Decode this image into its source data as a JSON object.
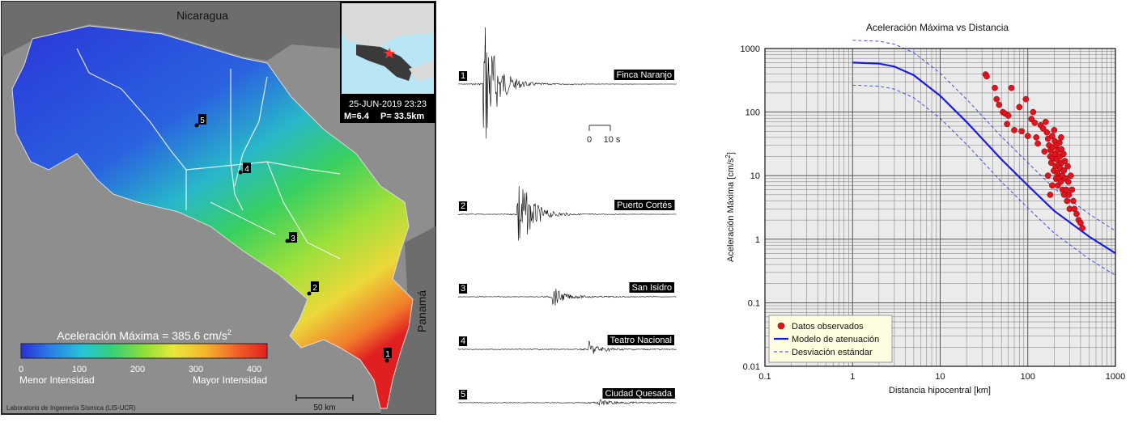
{
  "map": {
    "country_label_north": "Nicaragua",
    "country_label_east": "Panamá",
    "inset_date": "25-JUN-2019 23:23",
    "inset_magnitude": "M=6.4",
    "inset_depth": "P= 33.5km",
    "colorbar_title_prefix": "Aceleración Máxima =  385.6 cm/s",
    "colorbar_title_exp": "2",
    "colorbar_ticks": [
      "0",
      "100",
      "200",
      "300",
      "400"
    ],
    "colorbar_min_label": "Menor Intensidad",
    "colorbar_max_label": "Mayor Intensidad",
    "colorbar_colors": [
      "#2a2fd8",
      "#2a7fe8",
      "#27c6d8",
      "#36d07a",
      "#8ee03a",
      "#e8e83a",
      "#f5b52e",
      "#f0602a",
      "#e02020"
    ],
    "scale_label": "50 km",
    "credit": "Laboratorio de Ingeniería Sísmica (LIS-UCR)",
    "station_markers": [
      "1",
      "2",
      "3",
      "4",
      "5"
    ]
  },
  "seismograms": {
    "scale_labels": [
      "0",
      "10 s"
    ],
    "traces": [
      {
        "number": "1",
        "name": "Finca Naranjo"
      },
      {
        "number": "2",
        "name": "Puerto Cortés"
      },
      {
        "number": "3",
        "name": "San Isidro"
      },
      {
        "number": "4",
        "name": "Teatro Nacional"
      },
      {
        "number": "5",
        "name": "Ciudad Quesada"
      }
    ]
  },
  "chart_data": {
    "type": "scatter",
    "title": "Aceleración Máxima vs Distancia",
    "xlabel": "Distancia hipocentral [km]",
    "ylabel_prefix": "Aceleración Máxima [cm/s",
    "ylabel_exp": "2",
    "ylabel_suffix": "]",
    "x_scale": "log",
    "y_scale": "log",
    "xlim": [
      0.1,
      1000
    ],
    "ylim": [
      0.01,
      1000
    ],
    "x_ticks": [
      "0.1",
      "1",
      "10",
      "100",
      "1000"
    ],
    "y_ticks": [
      "0.01",
      "0.1",
      "1",
      "10",
      "100",
      "1000"
    ],
    "grid": true,
    "legend_position": "bottom-left",
    "legend": [
      "Datos observados",
      "Modelo de atenuación",
      "Desviación estándar"
    ],
    "colors": {
      "observed": "#e0141e",
      "model": "#1a1ae6",
      "deviation": "#3a3af0",
      "background": "#ebebeb"
    },
    "series": [
      {
        "name": "Datos observados",
        "points": [
          [
            33,
            390
          ],
          [
            34,
            365
          ],
          [
            42,
            240
          ],
          [
            44,
            160
          ],
          [
            47,
            130
          ],
          [
            52,
            100
          ],
          [
            55,
            95
          ],
          [
            58,
            65
          ],
          [
            60,
            88
          ],
          [
            65,
            240
          ],
          [
            70,
            52
          ],
          [
            80,
            120
          ],
          [
            85,
            50
          ],
          [
            95,
            160
          ],
          [
            100,
            42
          ],
          [
            110,
            78
          ],
          [
            115,
            100
          ],
          [
            120,
            68
          ],
          [
            125,
            40
          ],
          [
            130,
            32
          ],
          [
            140,
            62
          ],
          [
            150,
            55
          ],
          [
            155,
            24
          ],
          [
            160,
            70
          ],
          [
            165,
            48
          ],
          [
            170,
            38
          ],
          [
            175,
            30
          ],
          [
            180,
            20
          ],
          [
            182,
            25
          ],
          [
            185,
            16
          ],
          [
            190,
            42
          ],
          [
            192,
            28
          ],
          [
            195,
            19
          ],
          [
            198,
            12
          ],
          [
            200,
            52
          ],
          [
            203,
            35
          ],
          [
            205,
            22
          ],
          [
            208,
            14
          ],
          [
            210,
            9
          ],
          [
            212,
            30
          ],
          [
            215,
            18
          ],
          [
            218,
            11
          ],
          [
            220,
            7
          ],
          [
            222,
            25
          ],
          [
            225,
            15
          ],
          [
            228,
            9
          ],
          [
            230,
            33
          ],
          [
            232,
            20
          ],
          [
            235,
            13
          ],
          [
            238,
            8
          ],
          [
            240,
            40
          ],
          [
            242,
            26
          ],
          [
            245,
            16
          ],
          [
            248,
            10
          ],
          [
            250,
            6
          ],
          [
            255,
            22
          ],
          [
            258,
            12
          ],
          [
            260,
            5
          ],
          [
            265,
            17
          ],
          [
            270,
            9
          ],
          [
            275,
            6
          ],
          [
            280,
            4
          ],
          [
            285,
            14
          ],
          [
            290,
            8
          ],
          [
            295,
            5
          ],
          [
            300,
            3
          ],
          [
            310,
            10
          ],
          [
            320,
            6
          ],
          [
            330,
            4
          ],
          [
            340,
            3
          ],
          [
            360,
            2.5
          ],
          [
            380,
            2
          ],
          [
            400,
            1.8
          ],
          [
            420,
            1.5
          ],
          [
            180,
            5
          ],
          [
            190,
            7
          ],
          [
            170,
            10
          ]
        ]
      },
      {
        "name": "Modelo de atenuación",
        "points": [
          [
            1,
            600
          ],
          [
            2,
            580
          ],
          [
            3,
            520
          ],
          [
            5,
            380
          ],
          [
            10,
            180
          ],
          [
            20,
            70
          ],
          [
            50,
            18
          ],
          [
            100,
            7
          ],
          [
            200,
            2.8
          ],
          [
            500,
            1.1
          ],
          [
            1000,
            0.6
          ]
        ]
      },
      {
        "name": "Desviación estándar",
        "points": [
          [
            1,
            1350
          ],
          [
            2,
            1300
          ],
          [
            3,
            1170
          ],
          [
            5,
            860
          ],
          [
            10,
            410
          ],
          [
            20,
            160
          ],
          [
            50,
            41
          ],
          [
            100,
            16
          ],
          [
            200,
            6.3
          ],
          [
            500,
            2.5
          ],
          [
            1000,
            1.35
          ]
        ]
      },
      {
        "name": "Desviación estándar",
        "points": [
          [
            1,
            265
          ],
          [
            2,
            255
          ],
          [
            3,
            230
          ],
          [
            5,
            168
          ],
          [
            10,
            80
          ],
          [
            20,
            31
          ],
          [
            50,
            8
          ],
          [
            100,
            3.1
          ],
          [
            200,
            1.25
          ],
          [
            500,
            0.49
          ],
          [
            1000,
            0.27
          ]
        ]
      }
    ]
  }
}
